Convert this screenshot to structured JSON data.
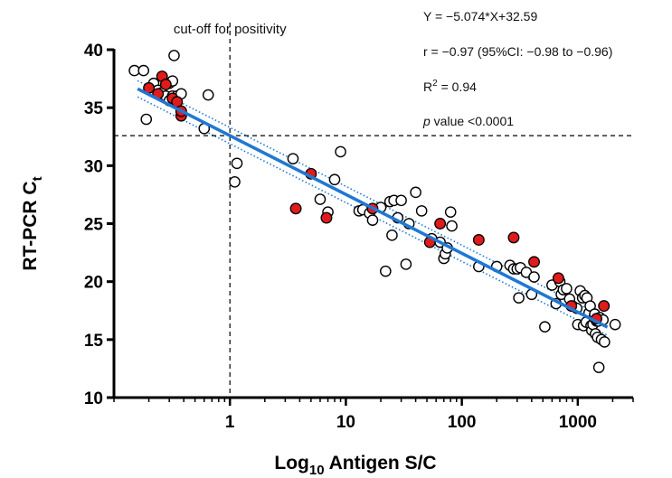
{
  "chart_data": {
    "type": "scatter",
    "title": "",
    "xlabel": "Log10 Antigen S/C",
    "xlabel_parts": {
      "pre": "Log",
      "sub": "10",
      "post": " Antigen S/C"
    },
    "ylabel": "RT-PCR Ct",
    "ylabel_parts": {
      "pre": "RT-PCR C",
      "sub": "t"
    },
    "x_scale": "log",
    "xlim": [
      0.1,
      3000
    ],
    "ylim": [
      10,
      40
    ],
    "x_ticks": [
      1,
      10,
      100,
      1000
    ],
    "x_tick_labels": [
      "1",
      "10",
      "100",
      "1000"
    ],
    "y_ticks": [
      10,
      15,
      20,
      25,
      30,
      35,
      40
    ],
    "y_tick_labels": [
      "10",
      "15",
      "20",
      "25",
      "30",
      "35",
      "40"
    ],
    "grid": false,
    "cutoff": {
      "x": 1,
      "y": 32.59,
      "label": "cut-off for positivity"
    },
    "regression": {
      "slope": -5.074,
      "intercept": 32.59,
      "x_range": [
        0.16,
        1800
      ],
      "color": "#1f78d4"
    },
    "annotations": {
      "equation": "Y = −5.074*X+32.59",
      "r": "r = −0.97 (95%CI: −0.98 to −0.96)",
      "r2_pre": "R",
      "r2_sup": "2",
      "r2_post": " = 0.94",
      "p_italic": "p",
      "p_rest": " value <0.0001"
    },
    "series": [
      {
        "marker": "open circle",
        "color": "#000000",
        "points": [
          [
            0.15,
            38.2
          ],
          [
            0.18,
            38.2
          ],
          [
            0.19,
            34.0
          ],
          [
            0.22,
            37.1
          ],
          [
            0.24,
            36.5
          ],
          [
            0.26,
            36.3
          ],
          [
            0.28,
            36.0
          ],
          [
            0.3,
            37.1
          ],
          [
            0.3,
            35.6
          ],
          [
            0.32,
            36.0
          ],
          [
            0.32,
            37.3
          ],
          [
            0.33,
            39.5
          ],
          [
            0.35,
            36.0
          ],
          [
            0.38,
            36.2
          ],
          [
            0.6,
            33.2
          ],
          [
            0.65,
            36.1
          ],
          [
            1.1,
            28.6
          ],
          [
            1.15,
            30.2
          ],
          [
            3.5,
            30.6
          ],
          [
            6,
            27.1
          ],
          [
            7,
            26.0
          ],
          [
            8,
            28.8
          ],
          [
            9,
            31.2
          ],
          [
            13,
            26.1
          ],
          [
            14,
            26.2
          ],
          [
            16,
            25.9
          ],
          [
            17,
            25.3
          ],
          [
            20,
            26.4
          ],
          [
            22,
            20.9
          ],
          [
            24,
            26.9
          ],
          [
            25,
            24.0
          ],
          [
            26,
            27.0
          ],
          [
            28,
            25.5
          ],
          [
            30,
            27.0
          ],
          [
            33,
            21.5
          ],
          [
            35,
            25.0
          ],
          [
            40,
            27.7
          ],
          [
            45,
            26.1
          ],
          [
            55,
            23.7
          ],
          [
            65,
            23.4
          ],
          [
            70,
            22.0
          ],
          [
            72,
            22.4
          ],
          [
            75,
            22.9
          ],
          [
            80,
            26.0
          ],
          [
            82,
            24.8
          ],
          [
            140,
            21.3
          ],
          [
            200,
            21.3
          ],
          [
            260,
            21.4
          ],
          [
            280,
            21.1
          ],
          [
            300,
            21.1
          ],
          [
            310,
            18.6
          ],
          [
            320,
            21.2
          ],
          [
            360,
            20.8
          ],
          [
            400,
            18.9
          ],
          [
            420,
            20.4
          ],
          [
            520,
            16.1
          ],
          [
            600,
            19.7
          ],
          [
            650,
            18.1
          ],
          [
            700,
            20.0
          ],
          [
            720,
            18.9
          ],
          [
            750,
            19.3
          ],
          [
            800,
            19.4
          ],
          [
            850,
            18.5
          ],
          [
            900,
            17.9
          ],
          [
            980,
            17.7
          ],
          [
            1000,
            16.3
          ],
          [
            1050,
            19.2
          ],
          [
            1100,
            18.6
          ],
          [
            1120,
            16.2
          ],
          [
            1150,
            18.8
          ],
          [
            1180,
            16.5
          ],
          [
            1200,
            18.6
          ],
          [
            1250,
            17.3
          ],
          [
            1280,
            17.9
          ],
          [
            1300,
            16.2
          ],
          [
            1320,
            15.8
          ],
          [
            1350,
            16.3
          ],
          [
            1380,
            16.9
          ],
          [
            1400,
            17.2
          ],
          [
            1420,
            15.5
          ],
          [
            1450,
            16.6
          ],
          [
            1480,
            15.2
          ],
          [
            1500,
            16.6
          ],
          [
            1520,
            12.6
          ],
          [
            1550,
            16.9
          ],
          [
            1600,
            15.0
          ],
          [
            1650,
            16.7
          ],
          [
            1700,
            14.8
          ],
          [
            2100,
            16.3
          ]
        ]
      },
      {
        "marker": "filled circle",
        "color": "#e01b1b",
        "points": [
          [
            0.2,
            36.7
          ],
          [
            0.24,
            36.2
          ],
          [
            0.26,
            37.7
          ],
          [
            0.28,
            37.0
          ],
          [
            0.32,
            35.8
          ],
          [
            0.35,
            35.5
          ],
          [
            0.38,
            34.3
          ],
          [
            0.38,
            34.7
          ],
          [
            3.7,
            26.3
          ],
          [
            5,
            29.3
          ],
          [
            6.8,
            25.5
          ],
          [
            17,
            26.3
          ],
          [
            53,
            23.4
          ],
          [
            65,
            25.0
          ],
          [
            140,
            23.6
          ],
          [
            280,
            23.8
          ],
          [
            420,
            21.7
          ],
          [
            680,
            20.3
          ],
          [
            880,
            17.9
          ],
          [
            1450,
            16.8
          ],
          [
            1680,
            17.9
          ]
        ]
      }
    ]
  }
}
